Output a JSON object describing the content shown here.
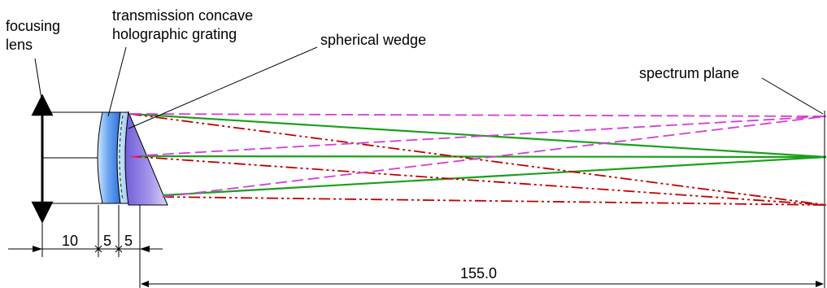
{
  "labels": {
    "focusing_lens_line1": "focusing",
    "focusing_lens_line2": "lens",
    "grating_line1": "transmission concave",
    "grating_line2": "holographic grating",
    "wedge": "spherical wedge",
    "spectrum_plane": "spectrum plane"
  },
  "dimensions": {
    "d1": "10",
    "d2": "5",
    "d3": "5",
    "total": "155.0"
  },
  "colors": {
    "green": "#1aa01a",
    "red": "#c00000",
    "magenta": "#d63cd6",
    "lens_blue": "#3a7fe8",
    "wedge_purple": "#8a7ae0"
  }
}
